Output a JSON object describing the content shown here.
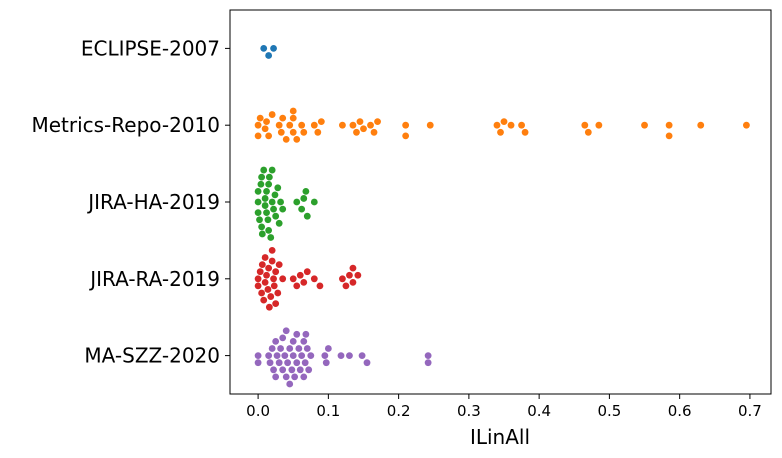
{
  "chart_data": {
    "type": "scatter",
    "style": "swarm",
    "xlabel": "ILinAll",
    "ylabel": "",
    "title": "",
    "xlim": [
      -0.04,
      0.73
    ],
    "xticks": [
      0.0,
      0.1,
      0.2,
      0.3,
      0.4,
      0.5,
      0.6,
      0.7
    ],
    "xtick_labels": [
      "0.0",
      "0.1",
      "0.2",
      "0.3",
      "0.4",
      "0.5",
      "0.6",
      "0.7"
    ],
    "grid": false,
    "categories": [
      "ECLIPSE-2007",
      "Metrics-Repo-2010",
      "JIRA-HA-2019",
      "JIRA-RA-2019",
      "MA-SZZ-2020"
    ],
    "series": [
      {
        "category": "ECLIPSE-2007",
        "color": "#1f77b4",
        "values": [
          0.008,
          0.015,
          0.022
        ]
      },
      {
        "category": "Metrics-Repo-2010",
        "color": "#ff7f0e",
        "values": [
          0.0,
          0.0,
          0.003,
          0.01,
          0.012,
          0.015,
          0.02,
          0.03,
          0.033,
          0.035,
          0.04,
          0.045,
          0.05,
          0.05,
          0.05,
          0.055,
          0.062,
          0.065,
          0.08,
          0.085,
          0.09,
          0.12,
          0.135,
          0.14,
          0.145,
          0.15,
          0.16,
          0.165,
          0.17,
          0.21,
          0.21,
          0.245,
          0.34,
          0.345,
          0.35,
          0.36,
          0.375,
          0.38,
          0.465,
          0.47,
          0.485,
          0.55,
          0.585,
          0.585,
          0.63,
          0.695
        ]
      },
      {
        "category": "JIRA-HA-2019",
        "color": "#2ca02c",
        "values": [
          0.0,
          0.0,
          0.0,
          0.002,
          0.004,
          0.005,
          0.005,
          0.006,
          0.008,
          0.01,
          0.01,
          0.012,
          0.012,
          0.014,
          0.015,
          0.015,
          0.016,
          0.018,
          0.02,
          0.02,
          0.022,
          0.024,
          0.025,
          0.028,
          0.03,
          0.032,
          0.035,
          0.055,
          0.062,
          0.065,
          0.068,
          0.07,
          0.08
        ]
      },
      {
        "category": "JIRA-RA-2019",
        "color": "#d62728",
        "values": [
          0.0,
          0.0,
          0.003,
          0.005,
          0.006,
          0.008,
          0.01,
          0.01,
          0.012,
          0.014,
          0.015,
          0.016,
          0.018,
          0.02,
          0.02,
          0.022,
          0.023,
          0.025,
          0.025,
          0.028,
          0.03,
          0.035,
          0.05,
          0.055,
          0.06,
          0.065,
          0.07,
          0.08,
          0.088,
          0.12,
          0.125,
          0.13,
          0.135,
          0.135,
          0.142
        ]
      },
      {
        "category": "MA-SZZ-2020",
        "color": "#9467bd",
        "values": [
          0.0,
          0.0,
          0.015,
          0.017,
          0.02,
          0.022,
          0.025,
          0.025,
          0.027,
          0.03,
          0.032,
          0.035,
          0.035,
          0.038,
          0.04,
          0.04,
          0.042,
          0.045,
          0.045,
          0.048,
          0.05,
          0.05,
          0.052,
          0.055,
          0.055,
          0.058,
          0.06,
          0.062,
          0.065,
          0.065,
          0.067,
          0.068,
          0.07,
          0.072,
          0.075,
          0.095,
          0.097,
          0.1,
          0.118,
          0.13,
          0.148,
          0.155,
          0.242,
          0.242
        ]
      }
    ]
  }
}
